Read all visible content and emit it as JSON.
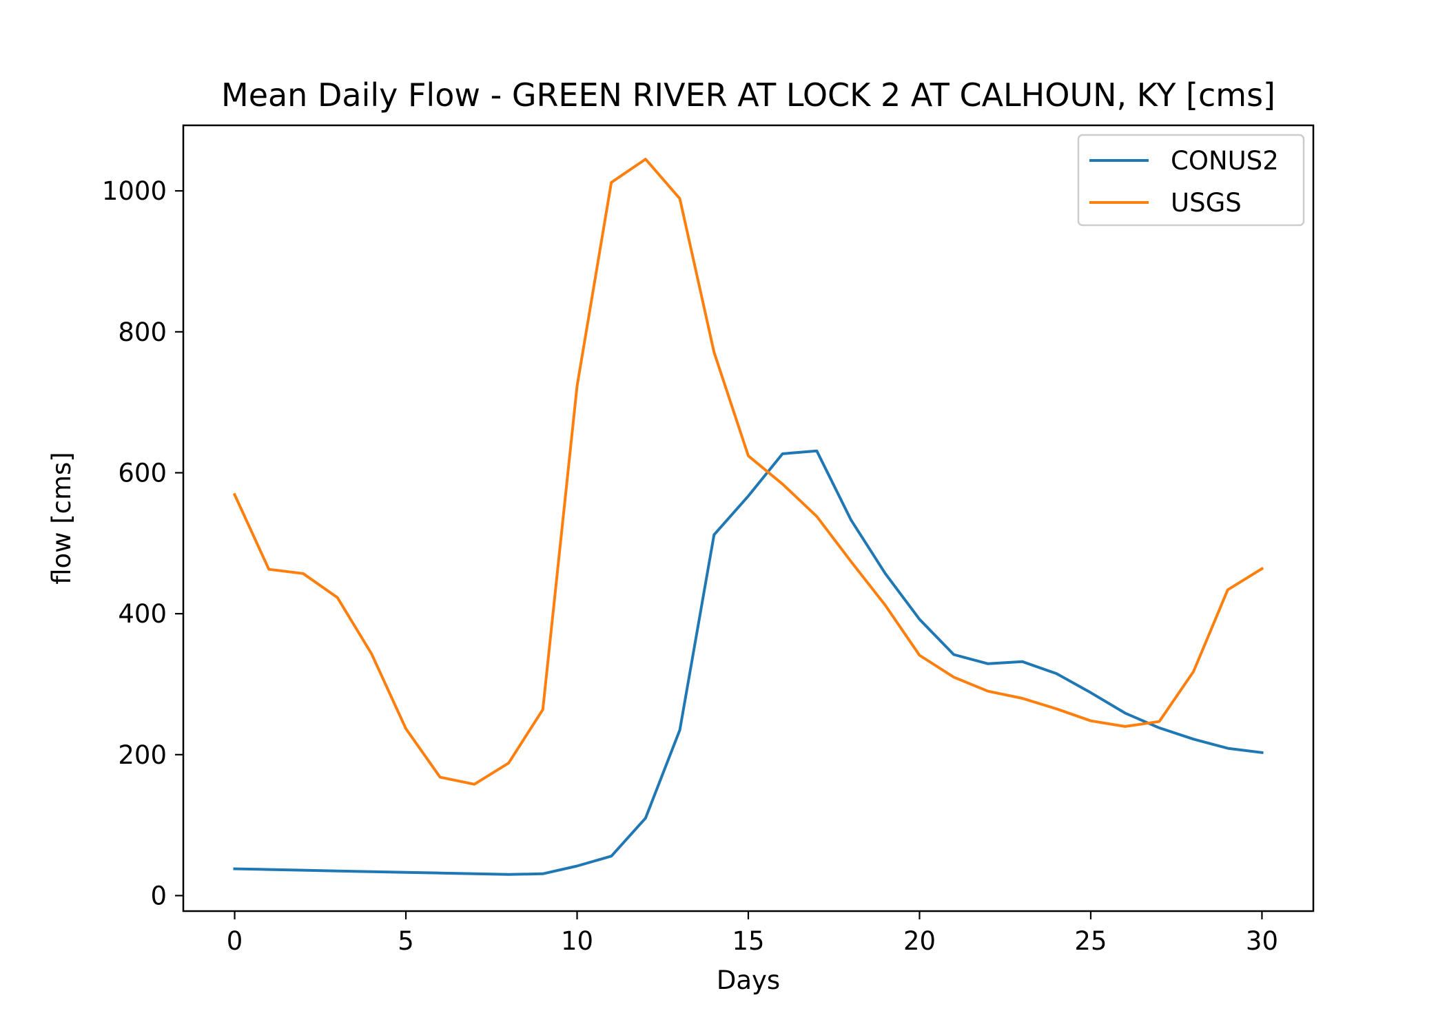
{
  "chart_data": {
    "type": "line",
    "title": "Mean Daily Flow - GREEN RIVER AT LOCK 2 AT CALHOUN, KY [cms]",
    "xlabel": "Days",
    "ylabel": "flow [cms]",
    "xlim": [
      -1.5,
      31.5
    ],
    "ylim": [
      -22,
      1093
    ],
    "xticks": [
      0,
      5,
      10,
      15,
      20,
      25,
      30
    ],
    "yticks": [
      0,
      200,
      400,
      600,
      800,
      1000
    ],
    "grid": false,
    "legend_position": "top-right",
    "x": [
      0,
      1,
      2,
      3,
      4,
      5,
      6,
      7,
      8,
      9,
      10,
      11,
      12,
      13,
      14,
      15,
      16,
      17,
      18,
      19,
      20,
      21,
      22,
      23,
      24,
      25,
      26,
      27,
      28,
      29,
      30
    ],
    "series": [
      {
        "name": "CONUS2",
        "color": "#1f77b4",
        "values": [
          38,
          37,
          36,
          35,
          34,
          33,
          32,
          31,
          30,
          31,
          42,
          56,
          110,
          235,
          512,
          567,
          627,
          631,
          533,
          457,
          392,
          342,
          329,
          332,
          315,
          288,
          259,
          238,
          222,
          209,
          203
        ]
      },
      {
        "name": "USGS",
        "color": "#ff7f0e",
        "values": [
          569,
          463,
          457,
          423,
          343,
          237,
          168,
          158,
          188,
          264,
          723,
          1012,
          1045,
          989,
          771,
          624,
          584,
          538,
          474,
          412,
          341,
          310,
          290,
          280,
          265,
          248,
          240,
          247,
          318,
          434,
          464
        ]
      }
    ]
  }
}
